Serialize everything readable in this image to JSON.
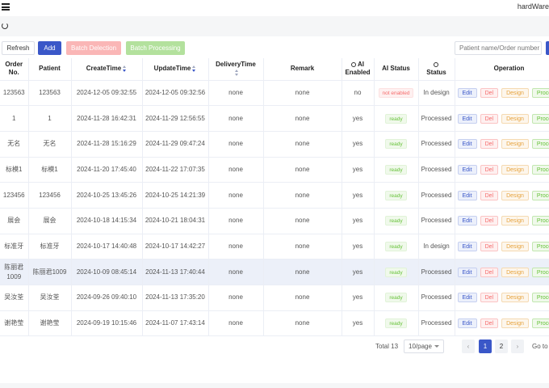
{
  "header": {
    "brand": "hardWare"
  },
  "toolbar": {
    "refresh_label": "Refresh",
    "add_label": "Add",
    "batch_delete_label": "Batch Delection",
    "batch_process_label": "Batch Processing",
    "search_placeholder": "Patient name/Order number"
  },
  "table": {
    "columns": {
      "order_no": "Order No.",
      "patient": "Patient",
      "create_time": "CreateTime",
      "update_time": "UpdateTime",
      "delivery_time": "DeliveryTime",
      "remark": "Remark",
      "ai_enabled": "AI Enabled",
      "ai_status": "AI Status",
      "status": "Status",
      "operation": "Operation"
    },
    "op_labels": {
      "edit": "Edit",
      "del": "Del",
      "design": "Design",
      "process": "Process"
    },
    "rows": [
      {
        "order_no": "123563",
        "patient": "123563",
        "create_time": "2024-12-05 09:32:55",
        "update_time": "2024-12-05 09:32:56",
        "delivery_time": "none",
        "remark": "none",
        "ai_enabled": "no",
        "ai_status": "not enabled",
        "status": "In design"
      },
      {
        "order_no": "1",
        "patient": "1",
        "create_time": "2024-11-28 16:42:31",
        "update_time": "2024-11-29 12:56:55",
        "delivery_time": "none",
        "remark": "none",
        "ai_enabled": "yes",
        "ai_status": "ready",
        "status": "Processed"
      },
      {
        "order_no": "无名",
        "patient": "无名",
        "create_time": "2024-11-28 15:16:29",
        "update_time": "2024-11-29 09:47:24",
        "delivery_time": "none",
        "remark": "none",
        "ai_enabled": "yes",
        "ai_status": "ready",
        "status": "Processed"
      },
      {
        "order_no": "标模1",
        "patient": "标模1",
        "create_time": "2024-11-20 17:45:40",
        "update_time": "2024-11-22 17:07:35",
        "delivery_time": "none",
        "remark": "none",
        "ai_enabled": "yes",
        "ai_status": "ready",
        "status": "Processed"
      },
      {
        "order_no": "123456",
        "patient": "123456",
        "create_time": "2024-10-25 13:45:26",
        "update_time": "2024-10-25 14:21:39",
        "delivery_time": "none",
        "remark": "none",
        "ai_enabled": "yes",
        "ai_status": "ready",
        "status": "Processed"
      },
      {
        "order_no": "展会",
        "patient": "展会",
        "create_time": "2024-10-18 14:15:34",
        "update_time": "2024-10-21 18:04:31",
        "delivery_time": "none",
        "remark": "none",
        "ai_enabled": "yes",
        "ai_status": "ready",
        "status": "Processed"
      },
      {
        "order_no": "标准牙",
        "patient": "标准牙",
        "create_time": "2024-10-17 14:40:48",
        "update_time": "2024-10-17 14:42:27",
        "delivery_time": "none",
        "remark": "none",
        "ai_enabled": "yes",
        "ai_status": "ready",
        "status": "In design"
      },
      {
        "order_no": "陈丽君1009",
        "patient": "陈丽君1009",
        "create_time": "2024-10-09 08:45:14",
        "update_time": "2024-11-13 17:40:44",
        "delivery_time": "none",
        "remark": "none",
        "ai_enabled": "yes",
        "ai_status": "ready",
        "status": "Processed"
      },
      {
        "order_no": "吴汝荃",
        "patient": "吴汝荃",
        "create_time": "2024-09-26 09:40:10",
        "update_time": "2024-11-13 17:35:20",
        "delivery_time": "none",
        "remark": "none",
        "ai_enabled": "yes",
        "ai_status": "ready",
        "status": "Processed"
      },
      {
        "order_no": "谢艳莹",
        "patient": "谢艳莹",
        "create_time": "2024-09-19 10:15:46",
        "update_time": "2024-11-07 17:43:14",
        "delivery_time": "none",
        "remark": "none",
        "ai_enabled": "yes",
        "ai_status": "ready",
        "status": "Processed"
      }
    ]
  },
  "pagination": {
    "total_label": "Total 13",
    "page_size_label": "10/page",
    "pages": [
      "1",
      "2"
    ],
    "current_page": "1",
    "prev_symbol": "‹",
    "next_symbol": "›",
    "goto_label": "Go to"
  }
}
